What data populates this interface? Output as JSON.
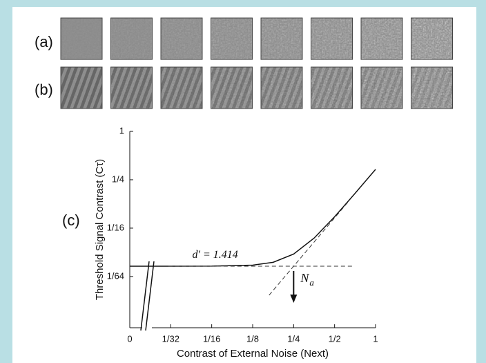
{
  "panel_labels": [
    "(a)",
    "(b)",
    "(c)"
  ],
  "chart_data": {
    "type": "line",
    "xlabel": "Contrast of External Noise (Next)",
    "ylabel": "Threshold Signal Contrast (Cτ)",
    "xscale": "log",
    "yscale": "log",
    "xlim": [
      0.015625,
      1
    ],
    "ylim": [
      0.0036,
      1
    ],
    "xticks": [
      {
        "value": 0.015625,
        "label": "0"
      },
      {
        "value": 0.03125,
        "label": "1/32"
      },
      {
        "value": 0.0625,
        "label": "1/16"
      },
      {
        "value": 0.125,
        "label": "1/8"
      },
      {
        "value": 0.25,
        "label": "1/4"
      },
      {
        "value": 0.5,
        "label": "1/2"
      },
      1
    ],
    "yticks": [
      {
        "value": 0.015625,
        "label": "1/64"
      },
      {
        "value": 0.0625,
        "label": "1/16"
      },
      {
        "value": 0.25,
        "label": "1/4"
      },
      1
    ],
    "series": [
      {
        "style": "solid",
        "color": "#111111",
        "x": [
          0.015625,
          0.03125,
          0.0625,
          0.125,
          0.1768,
          0.25,
          0.3536,
          0.5,
          0.7071,
          1
        ],
        "values": [
          0.021,
          0.021,
          0.02104,
          0.02165,
          0.02348,
          0.0297,
          0.04696,
          0.0866,
          0.1693,
          0.3366
        ]
      },
      {
        "style": "dashed",
        "color": "#333333",
        "x": [
          0.03,
          0.68
        ],
        "values": [
          0.021,
          0.021
        ]
      },
      {
        "style": "dashed",
        "color": "#333333",
        "x": [
          0.165,
          0.63
        ],
        "values": [
          0.00915,
          0.133
        ]
      }
    ],
    "annotations": [
      {
        "text": "d' = 1.414",
        "x": 0.045,
        "y": 0.0285
      },
      {
        "text": "N",
        "sub": "a",
        "x": 0.25,
        "y": 0.0105
      }
    ]
  }
}
